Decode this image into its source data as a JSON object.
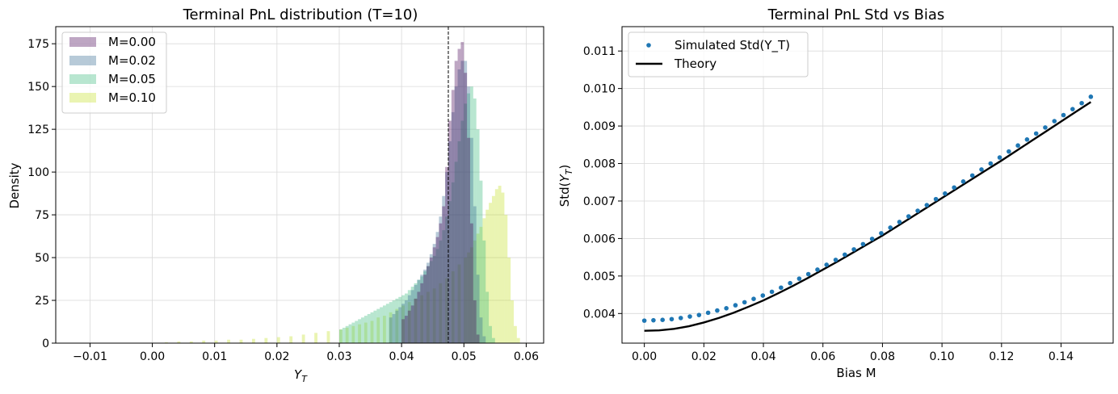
{
  "chart_data": [
    {
      "type": "histogram",
      "title": "Terminal PnL distribution (T=10)",
      "xlabel_main": "Y",
      "xlabel_sub": "T",
      "ylabel": "Density",
      "xlim": [
        -0.0155,
        0.0628
      ],
      "ylim": [
        0,
        185
      ],
      "xticks": [
        -0.01,
        0.0,
        0.01,
        0.02,
        0.03,
        0.04,
        0.05,
        0.06
      ],
      "xtick_labels": [
        "−0.01",
        "0.00",
        "0.01",
        "0.02",
        "0.03",
        "0.04",
        "0.05",
        "0.06"
      ],
      "yticks": [
        0,
        25,
        50,
        75,
        100,
        125,
        150,
        175
      ],
      "ytick_labels": [
        "0",
        "25",
        "50",
        "75",
        "100",
        "125",
        "150",
        "175"
      ],
      "grid": true,
      "legend_position": "top-left",
      "vline_x": 0.0475,
      "series": [
        {
          "name": "M=0.00",
          "color": "#440154",
          "opacity": 0.35,
          "bin_width": 0.0005,
          "bins": [
            [
              0.04,
              14
            ],
            [
              0.0405,
              16
            ],
            [
              0.041,
              19
            ],
            [
              0.0415,
              22
            ],
            [
              0.042,
              26
            ],
            [
              0.0425,
              30
            ],
            [
              0.043,
              35
            ],
            [
              0.0435,
              40
            ],
            [
              0.044,
              45
            ],
            [
              0.0445,
              50
            ],
            [
              0.045,
              56
            ],
            [
              0.0455,
              62
            ],
            [
              0.046,
              70
            ],
            [
              0.0465,
              80
            ],
            [
              0.047,
              103
            ],
            [
              0.0475,
              130
            ],
            [
              0.048,
              148
            ],
            [
              0.0485,
              165
            ],
            [
              0.049,
              172
            ],
            [
              0.0495,
              176
            ],
            [
              0.05,
              158
            ],
            [
              0.0505,
              120
            ],
            [
              0.051,
              70
            ],
            [
              0.0515,
              25
            ],
            [
              0.052,
              5
            ]
          ]
        },
        {
          "name": "M=0.02",
          "color": "#31688e",
          "opacity": 0.35,
          "bin_width": 0.0005,
          "bins": [
            [
              0.038,
              15
            ],
            [
              0.0385,
              17
            ],
            [
              0.039,
              19
            ],
            [
              0.0395,
              21
            ],
            [
              0.04,
              23
            ],
            [
              0.0405,
              25
            ],
            [
              0.041,
              28
            ],
            [
              0.0415,
              31
            ],
            [
              0.042,
              34
            ],
            [
              0.0425,
              37
            ],
            [
              0.043,
              40
            ],
            [
              0.0435,
              43
            ],
            [
              0.044,
              47
            ],
            [
              0.0445,
              52
            ],
            [
              0.045,
              58
            ],
            [
              0.0455,
              65
            ],
            [
              0.046,
              74
            ],
            [
              0.0465,
              86
            ],
            [
              0.047,
              100
            ],
            [
              0.0475,
              118
            ],
            [
              0.048,
              135
            ],
            [
              0.0485,
              150
            ],
            [
              0.049,
              160
            ],
            [
              0.0495,
              165
            ],
            [
              0.05,
              165
            ],
            [
              0.0505,
              150
            ],
            [
              0.051,
              120
            ],
            [
              0.0515,
              80
            ],
            [
              0.052,
              40
            ],
            [
              0.0525,
              15
            ],
            [
              0.053,
              4
            ]
          ]
        },
        {
          "name": "M=0.05",
          "color": "#35b779",
          "opacity": 0.35,
          "bin_width": 0.0005,
          "bins": [
            [
              0.03,
              8
            ],
            [
              0.0305,
              9
            ],
            [
              0.031,
              10
            ],
            [
              0.0315,
              11
            ],
            [
              0.032,
              12
            ],
            [
              0.0325,
              13
            ],
            [
              0.033,
              14
            ],
            [
              0.0335,
              15
            ],
            [
              0.034,
              16
            ],
            [
              0.0345,
              17
            ],
            [
              0.035,
              18
            ],
            [
              0.0355,
              19
            ],
            [
              0.036,
              20
            ],
            [
              0.0365,
              21
            ],
            [
              0.037,
              22
            ],
            [
              0.0375,
              23
            ],
            [
              0.038,
              24
            ],
            [
              0.0385,
              25
            ],
            [
              0.039,
              26
            ],
            [
              0.0395,
              27
            ],
            [
              0.04,
              28
            ],
            [
              0.0405,
              29
            ],
            [
              0.041,
              31
            ],
            [
              0.0415,
              33
            ],
            [
              0.042,
              35
            ],
            [
              0.0425,
              37
            ],
            [
              0.043,
              39
            ],
            [
              0.0435,
              42
            ],
            [
              0.044,
              45
            ],
            [
              0.0445,
              48
            ],
            [
              0.045,
              51
            ],
            [
              0.0455,
              55
            ],
            [
              0.046,
              60
            ],
            [
              0.0465,
              66
            ],
            [
              0.047,
              74
            ],
            [
              0.0475,
              83
            ],
            [
              0.048,
              94
            ],
            [
              0.0485,
              106
            ],
            [
              0.049,
              118
            ],
            [
              0.0495,
              130
            ],
            [
              0.05,
              140
            ],
            [
              0.0505,
              146
            ],
            [
              0.051,
              150
            ],
            [
              0.0515,
              143
            ],
            [
              0.052,
              125
            ],
            [
              0.0525,
              95
            ],
            [
              0.053,
              60
            ],
            [
              0.0535,
              30
            ],
            [
              0.054,
              10
            ],
            [
              0.0545,
              3
            ]
          ]
        },
        {
          "name": "M=0.10",
          "color": "#c2df23",
          "opacity": 0.35,
          "bin_width": 0.0005,
          "bins": [
            [
              0.002,
              0.5
            ],
            [
              0.004,
              1
            ],
            [
              0.006,
              1
            ],
            [
              0.008,
              1.5
            ],
            [
              0.01,
              1.5
            ],
            [
              0.012,
              2
            ],
            [
              0.014,
              2
            ],
            [
              0.016,
              2.5
            ],
            [
              0.018,
              3
            ],
            [
              0.02,
              3.5
            ],
            [
              0.022,
              4
            ],
            [
              0.024,
              5
            ],
            [
              0.026,
              6
            ],
            [
              0.028,
              7
            ],
            [
              0.03,
              8
            ],
            [
              0.031,
              9
            ],
            [
              0.032,
              10
            ],
            [
              0.033,
              11
            ],
            [
              0.034,
              12
            ],
            [
              0.035,
              13
            ],
            [
              0.036,
              15
            ],
            [
              0.037,
              16
            ],
            [
              0.038,
              18
            ],
            [
              0.039,
              20
            ],
            [
              0.04,
              22
            ],
            [
              0.041,
              24
            ],
            [
              0.042,
              26
            ],
            [
              0.043,
              28
            ],
            [
              0.044,
              30
            ],
            [
              0.045,
              32
            ],
            [
              0.046,
              35
            ],
            [
              0.047,
              38
            ],
            [
              0.048,
              42
            ],
            [
              0.049,
              46
            ],
            [
              0.05,
              50
            ],
            [
              0.0505,
              53
            ],
            [
              0.051,
              56
            ],
            [
              0.0515,
              60
            ],
            [
              0.052,
              64
            ],
            [
              0.0525,
              68
            ],
            [
              0.053,
              73
            ],
            [
              0.0535,
              78
            ],
            [
              0.054,
              82
            ],
            [
              0.0545,
              86
            ],
            [
              0.055,
              90
            ],
            [
              0.0555,
              92
            ],
            [
              0.056,
              88
            ],
            [
              0.0565,
              75
            ],
            [
              0.057,
              50
            ],
            [
              0.0575,
              25
            ],
            [
              0.058,
              10
            ],
            [
              0.0585,
              3
            ]
          ]
        }
      ]
    },
    {
      "type": "line",
      "title": "Terminal PnL Std vs Bias",
      "xlabel": "Bias M",
      "ylabel_prefix": "Std(",
      "ylabel_main": "Y",
      "ylabel_sub": "T",
      "ylabel_suffix": ")",
      "xlim": [
        -0.0075,
        0.1575
      ],
      "ylim": [
        0.00321,
        0.01165
      ],
      "xticks": [
        0.0,
        0.02,
        0.04,
        0.06,
        0.08,
        0.1,
        0.12,
        0.14
      ],
      "xtick_labels": [
        "0.00",
        "0.02",
        "0.04",
        "0.06",
        "0.08",
        "0.10",
        "0.12",
        "0.14"
      ],
      "yticks": [
        0.004,
        0.005,
        0.006,
        0.007,
        0.008,
        0.009,
        0.01,
        0.011
      ],
      "ytick_labels": [
        "0.004",
        "0.005",
        "0.006",
        "0.007",
        "0.008",
        "0.009",
        "0.010",
        "0.011"
      ],
      "grid": true,
      "legend_position": "top-left",
      "series": [
        {
          "name": "Simulated Std(Y_T)",
          "style": "markers",
          "color": "#1f77b4",
          "x": [
            0.0,
            0.00306,
            0.00612,
            0.00918,
            0.01224,
            0.0153,
            0.01837,
            0.02143,
            0.02449,
            0.02755,
            0.03061,
            0.03367,
            0.03673,
            0.0398,
            0.04286,
            0.04592,
            0.04898,
            0.05204,
            0.0551,
            0.05816,
            0.06122,
            0.06429,
            0.06735,
            0.07041,
            0.07347,
            0.07653,
            0.07959,
            0.08265,
            0.08571,
            0.08878,
            0.09184,
            0.0949,
            0.09796,
            0.10102,
            0.10408,
            0.10714,
            0.1102,
            0.11327,
            0.11633,
            0.11939,
            0.12245,
            0.12551,
            0.12857,
            0.13163,
            0.13469,
            0.13776,
            0.14082,
            0.14388,
            0.14694,
            0.15
          ],
          "y": [
            0.00381,
            0.00382,
            0.00383,
            0.00385,
            0.00388,
            0.00392,
            0.00396,
            0.00402,
            0.00408,
            0.00414,
            0.00422,
            0.0043,
            0.00439,
            0.00448,
            0.00458,
            0.00469,
            0.00481,
            0.00493,
            0.00505,
            0.00517,
            0.0053,
            0.00543,
            0.00557,
            0.00571,
            0.00585,
            0.00599,
            0.00614,
            0.00629,
            0.00644,
            0.00659,
            0.00674,
            0.00689,
            0.00705,
            0.0072,
            0.00736,
            0.00752,
            0.00768,
            0.00784,
            0.008,
            0.00816,
            0.00832,
            0.00848,
            0.00864,
            0.0088,
            0.00896,
            0.00913,
            0.00929,
            0.00945,
            0.00961,
            0.00978
          ]
        },
        {
          "name": "Theory",
          "style": "line",
          "color": "#000000",
          "x": [
            0.0,
            0.005,
            0.01,
            0.015,
            0.02,
            0.025,
            0.03,
            0.035,
            0.04,
            0.045,
            0.05,
            0.055,
            0.06,
            0.065,
            0.07,
            0.075,
            0.08,
            0.085,
            0.09,
            0.095,
            0.1,
            0.105,
            0.11,
            0.115,
            0.12,
            0.125,
            0.13,
            0.135,
            0.14,
            0.145,
            0.15
          ],
          "y": [
            0.00354,
            0.00355,
            0.00359,
            0.00366,
            0.00376,
            0.00388,
            0.00402,
            0.00418,
            0.00435,
            0.00454,
            0.00474,
            0.00495,
            0.00517,
            0.00539,
            0.00562,
            0.00585,
            0.00608,
            0.00633,
            0.00658,
            0.00683,
            0.00708,
            0.00733,
            0.00758,
            0.00783,
            0.00808,
            0.00834,
            0.0086,
            0.00886,
            0.00912,
            0.00938,
            0.00964
          ]
        }
      ]
    }
  ]
}
